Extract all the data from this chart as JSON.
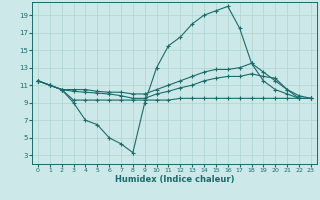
{
  "background_color": "#cde8e8",
  "grid_color": "#b0d4cc",
  "line_color": "#1a6b6b",
  "xlabel": "Humidex (Indice chaleur)",
  "xlim": [
    -0.5,
    23.5
  ],
  "ylim": [
    2,
    20.5
  ],
  "yticks": [
    3,
    5,
    7,
    9,
    11,
    13,
    15,
    17,
    19
  ],
  "xticks": [
    0,
    1,
    2,
    3,
    4,
    5,
    6,
    7,
    8,
    9,
    10,
    11,
    12,
    13,
    14,
    15,
    16,
    17,
    18,
    19,
    20,
    21,
    22,
    23
  ],
  "series": [
    {
      "x": [
        0,
        1,
        2,
        3,
        4,
        5,
        6,
        7,
        8,
        9,
        10,
        11,
        12,
        13,
        14,
        15,
        16,
        17,
        18,
        19,
        20,
        21,
        22
      ],
      "y": [
        11.5,
        11.0,
        10.5,
        9.0,
        7.0,
        6.5,
        5.0,
        4.3,
        3.3,
        9.0,
        13.0,
        15.5,
        16.5,
        18.0,
        19.0,
        19.5,
        20.0,
        17.5,
        13.5,
        11.5,
        10.5,
        10.0,
        9.5
      ]
    },
    {
      "x": [
        0,
        1,
        2,
        3,
        4,
        5,
        6,
        7,
        8,
        9,
        10,
        11,
        12,
        13,
        14,
        15,
        16,
        17,
        18,
        19,
        20,
        21,
        22,
        23
      ],
      "y": [
        11.5,
        11.0,
        10.5,
        10.5,
        10.5,
        10.3,
        10.2,
        10.2,
        10.0,
        10.0,
        10.5,
        11.0,
        11.5,
        12.0,
        12.5,
        12.8,
        12.8,
        13.0,
        13.5,
        12.5,
        11.5,
        10.5,
        9.8,
        9.5
      ]
    },
    {
      "x": [
        0,
        1,
        2,
        3,
        4,
        5,
        6,
        7,
        8,
        9,
        10,
        11,
        12,
        13,
        14,
        15,
        16,
        17,
        18,
        19,
        20,
        21,
        22,
        23
      ],
      "y": [
        11.5,
        11.0,
        10.5,
        10.3,
        10.2,
        10.1,
        10.0,
        9.8,
        9.5,
        9.5,
        10.0,
        10.3,
        10.7,
        11.0,
        11.5,
        11.8,
        12.0,
        12.0,
        12.3,
        12.0,
        11.8,
        10.5,
        9.5,
        9.5
      ]
    },
    {
      "x": [
        0,
        1,
        2,
        3,
        4,
        5,
        6,
        7,
        8,
        9,
        10,
        11,
        12,
        13,
        14,
        15,
        16,
        17,
        18,
        19,
        20,
        21,
        22,
        23
      ],
      "y": [
        11.5,
        11.0,
        10.5,
        9.3,
        9.3,
        9.3,
        9.3,
        9.3,
        9.3,
        9.3,
        9.3,
        9.3,
        9.5,
        9.5,
        9.5,
        9.5,
        9.5,
        9.5,
        9.5,
        9.5,
        9.5,
        9.5,
        9.5,
        9.5
      ]
    }
  ]
}
